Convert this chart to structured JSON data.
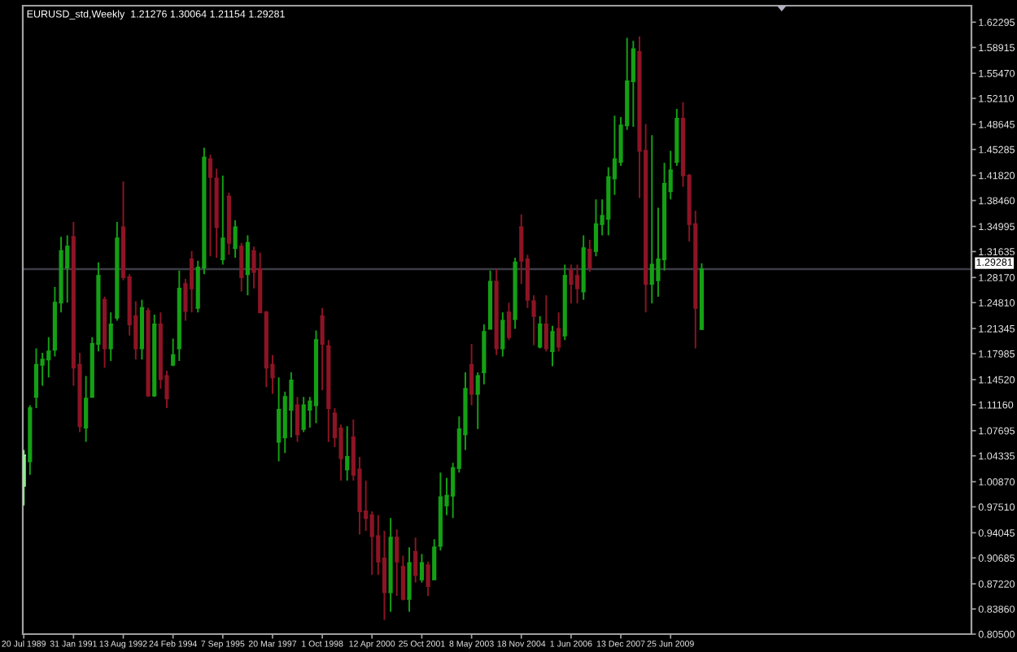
{
  "chart_data": {
    "type": "candlestick",
    "title": "EURUSD_std,Weekly  1.21276 1.30064 1.21154 1.29281",
    "x": [
      "1989-07-20",
      "1989-09-28",
      "1989-12-07",
      "1990-02-15",
      "1990-04-26",
      "1990-07-05",
      "1990-09-13",
      "1990-11-22",
      "1991-01-31",
      "1991-04-11",
      "1991-06-20",
      "1991-08-29",
      "1991-11-07",
      "1992-01-16",
      "1992-03-26",
      "1992-06-04",
      "1992-08-13",
      "1992-10-22",
      "1992-12-31",
      "1993-03-11",
      "1993-05-20",
      "1993-07-29",
      "1993-10-07",
      "1993-12-16",
      "1994-02-24",
      "1994-05-05",
      "1994-07-14",
      "1994-09-22",
      "1994-12-01",
      "1995-02-09",
      "1995-04-20",
      "1995-06-29",
      "1995-09-07",
      "1995-11-16",
      "1996-01-25",
      "1996-04-04",
      "1996-06-13",
      "1996-08-22",
      "1996-10-31",
      "1997-01-09",
      "1997-03-20",
      "1997-05-29",
      "1997-08-07",
      "1997-10-16",
      "1997-12-25",
      "1998-03-05",
      "1998-05-14",
      "1998-07-23",
      "1998-10-01",
      "1998-12-10",
      "1999-02-18",
      "1999-04-29",
      "1999-07-08",
      "1999-09-16",
      "1999-11-25",
      "2000-02-03",
      "2000-04-12",
      "2000-06-21",
      "2000-08-30",
      "2000-11-08",
      "2001-01-17",
      "2001-03-28",
      "2001-06-06",
      "2001-08-15",
      "2001-10-25",
      "2002-01-03",
      "2002-03-14",
      "2002-05-23",
      "2002-08-01",
      "2002-10-10",
      "2002-12-19",
      "2003-02-27",
      "2003-05-08",
      "2003-07-17",
      "2003-09-25",
      "2003-12-04",
      "2004-02-12",
      "2004-04-22",
      "2004-07-01",
      "2004-09-09",
      "2004-11-18",
      "2005-01-27",
      "2005-04-07",
      "2005-06-16",
      "2005-08-25",
      "2005-11-03",
      "2006-01-12",
      "2006-03-23",
      "2006-06-01",
      "2006-08-10",
      "2006-10-19",
      "2006-12-28",
      "2007-03-08",
      "2007-05-17",
      "2007-07-26",
      "2007-10-04",
      "2007-12-13",
      "2008-02-21",
      "2008-05-01",
      "2008-07-10",
      "2008-09-18",
      "2008-11-27",
      "2009-02-05",
      "2009-04-16",
      "2009-06-25",
      "2009-09-03",
      "2009-11-12",
      "2010-01-21",
      "2010-04-01",
      "2010-06-10"
    ],
    "ohlc": [
      [
        1.003,
        1.051,
        0.977,
        1.044
      ],
      [
        1.036,
        1.111,
        1.018,
        1.107
      ],
      [
        1.122,
        1.187,
        1.107,
        1.165
      ],
      [
        1.165,
        1.181,
        1.137,
        1.172
      ],
      [
        1.172,
        1.202,
        1.148,
        1.183
      ],
      [
        1.185,
        1.269,
        1.176,
        1.248
      ],
      [
        1.248,
        1.336,
        1.235,
        1.317
      ],
      [
        1.295,
        1.338,
        1.248,
        1.323
      ],
      [
        1.336,
        1.356,
        1.137,
        1.161
      ],
      [
        1.165,
        1.181,
        1.075,
        1.083
      ],
      [
        1.081,
        1.15,
        1.062,
        1.12
      ],
      [
        1.122,
        1.202,
        1.122,
        1.193
      ],
      [
        1.193,
        1.302,
        1.183,
        1.284
      ],
      [
        1.252,
        1.256,
        1.161,
        1.187
      ],
      [
        1.187,
        1.235,
        1.17,
        1.219
      ],
      [
        1.228,
        1.356,
        1.224,
        1.334
      ],
      [
        1.349,
        1.41,
        1.278,
        1.282
      ],
      [
        1.282,
        1.286,
        1.204,
        1.219
      ],
      [
        1.23,
        1.25,
        1.172,
        1.187
      ],
      [
        1.187,
        1.252,
        1.172,
        1.241
      ],
      [
        1.237,
        1.241,
        1.122,
        1.124
      ],
      [
        1.124,
        1.232,
        1.122,
        1.219
      ],
      [
        1.219,
        1.235,
        1.133,
        1.146
      ],
      [
        1.15,
        1.157,
        1.107,
        1.12
      ],
      [
        1.165,
        1.2,
        1.163,
        1.178
      ],
      [
        1.187,
        1.291,
        1.17,
        1.267
      ],
      [
        1.273,
        1.28,
        1.224,
        1.237
      ],
      [
        1.306,
        1.317,
        1.235,
        1.267
      ],
      [
        1.241,
        1.304,
        1.235,
        1.295
      ],
      [
        1.295,
        1.455,
        1.286,
        1.442
      ],
      [
        1.44,
        1.446,
        1.31,
        1.416
      ],
      [
        1.414,
        1.427,
        1.308,
        1.349
      ],
      [
        1.306,
        1.418,
        1.299,
        1.334
      ],
      [
        1.39,
        1.395,
        1.312,
        1.328
      ],
      [
        1.321,
        1.358,
        1.308,
        1.349
      ],
      [
        1.323,
        1.328,
        1.263,
        1.282
      ],
      [
        1.286,
        1.338,
        1.258,
        1.328
      ],
      [
        1.317,
        1.323,
        1.267,
        1.289
      ],
      [
        1.293,
        1.315,
        1.235,
        1.235
      ],
      [
        1.235,
        1.237,
        1.135,
        1.161
      ],
      [
        1.165,
        1.178,
        1.126,
        1.148
      ],
      [
        1.062,
        1.148,
        1.036,
        1.105
      ],
      [
        1.068,
        1.129,
        1.047,
        1.122
      ],
      [
        1.105,
        1.155,
        1.068,
        1.144
      ],
      [
        1.111,
        1.122,
        1.062,
        1.072
      ],
      [
        1.079,
        1.122,
        1.075,
        1.111
      ],
      [
        1.105,
        1.122,
        1.081,
        1.116
      ],
      [
        1.111,
        1.211,
        1.087,
        1.198
      ],
      [
        1.23,
        1.241,
        1.131,
        1.193
      ],
      [
        1.19,
        1.198,
        1.062,
        1.107
      ],
      [
        1.1,
        1.107,
        1.055,
        1.068
      ],
      [
        1.08,
        1.085,
        1.01,
        1.04
      ],
      [
        1.025,
        1.083,
        1.01,
        1.042
      ],
      [
        1.068,
        1.092,
        1.01,
        1.018
      ],
      [
        1.025,
        1.042,
        0.938,
        0.969
      ],
      [
        0.969,
        1.01,
        0.943,
        0.96
      ],
      [
        0.964,
        0.969,
        0.884,
        0.936
      ],
      [
        0.936,
        0.964,
        0.884,
        0.902
      ],
      [
        0.906,
        0.943,
        0.824,
        0.861
      ],
      [
        0.861,
        0.96,
        0.835,
        0.934
      ],
      [
        0.934,
        0.945,
        0.856,
        0.902
      ],
      [
        0.895,
        0.91,
        0.85,
        0.852
      ],
      [
        0.852,
        0.921,
        0.835,
        0.9
      ],
      [
        0.915,
        0.934,
        0.874,
        0.884
      ],
      [
        0.878,
        0.912,
        0.874,
        0.9
      ],
      [
        0.897,
        0.902,
        0.856,
        0.869
      ],
      [
        0.878,
        0.932,
        0.878,
        0.921
      ],
      [
        0.923,
        1.021,
        0.917,
        0.988
      ],
      [
        0.977,
        1.014,
        0.964,
        0.99
      ],
      [
        0.99,
        1.034,
        0.96,
        1.027
      ],
      [
        1.027,
        1.096,
        1.021,
        1.079
      ],
      [
        1.072,
        1.155,
        1.051,
        1.133
      ],
      [
        1.165,
        1.193,
        1.111,
        1.126
      ],
      [
        1.126,
        1.155,
        1.079,
        1.15
      ],
      [
        1.155,
        1.219,
        1.139,
        1.209
      ],
      [
        1.213,
        1.291,
        1.213,
        1.276
      ],
      [
        1.276,
        1.293,
        1.178,
        1.187
      ],
      [
        1.187,
        1.235,
        1.176,
        1.224
      ],
      [
        1.235,
        1.248,
        1.198,
        1.202
      ],
      [
        1.226,
        1.308,
        1.213,
        1.302
      ],
      [
        1.349,
        1.366,
        1.273,
        1.304
      ],
      [
        1.306,
        1.312,
        1.241,
        1.252
      ],
      [
        1.25,
        1.258,
        1.191,
        1.23
      ],
      [
        1.189,
        1.23,
        1.187,
        1.219
      ],
      [
        1.219,
        1.258,
        1.183,
        1.187
      ],
      [
        1.183,
        1.217,
        1.163,
        1.209
      ],
      [
        1.213,
        1.235,
        1.183,
        1.189
      ],
      [
        1.204,
        1.299,
        1.198,
        1.284
      ],
      [
        1.291,
        1.299,
        1.247,
        1.273
      ],
      [
        1.284,
        1.299,
        1.247,
        1.267
      ],
      [
        1.263,
        1.338,
        1.252,
        1.321
      ],
      [
        1.319,
        1.332,
        1.289,
        1.295
      ],
      [
        1.317,
        1.386,
        1.31,
        1.353
      ],
      [
        1.353,
        1.386,
        1.338,
        1.364
      ],
      [
        1.36,
        1.429,
        1.338,
        1.416
      ],
      [
        1.414,
        1.498,
        1.392,
        1.44
      ],
      [
        1.436,
        1.496,
        1.431,
        1.485
      ],
      [
        1.485,
        1.602,
        1.479,
        1.544
      ],
      [
        1.544,
        1.598,
        1.483,
        1.587
      ],
      [
        1.583,
        1.604,
        1.388,
        1.451
      ],
      [
        1.451,
        1.487,
        1.235,
        1.273
      ],
      [
        1.273,
        1.472,
        1.247,
        1.299
      ],
      [
        1.278,
        1.375,
        1.256,
        1.306
      ],
      [
        1.306,
        1.435,
        1.291,
        1.407
      ],
      [
        1.397,
        1.451,
        1.386,
        1.425
      ],
      [
        1.436,
        1.507,
        1.431,
        1.494
      ],
      [
        1.494,
        1.516,
        1.403,
        1.418
      ],
      [
        1.418,
        1.42,
        1.33,
        1.353
      ],
      [
        1.353,
        1.371,
        1.187,
        1.241
      ],
      [
        1.21276,
        1.30064,
        1.21154,
        1.29281
      ]
    ],
    "colors": [
      "#90ee90",
      "#14a014",
      "#14a014",
      "#14a014",
      "#14a014",
      "#14a014",
      "#14a014",
      "#14a014",
      "#8c1424",
      "#8c1424",
      "#14a014",
      "#14a014",
      "#14a014",
      "#8c1424",
      "#14a014",
      "#14a014",
      "#8c1424",
      "#8c1424",
      "#8c1424",
      "#14a014",
      "#8c1424",
      "#14a014",
      "#8c1424",
      "#8c1424",
      "#14a014",
      "#14a014",
      "#8c1424",
      "#8c1424",
      "#14a014",
      "#14a014",
      "#8c1424",
      "#8c1424",
      "#14a014",
      "#8c1424",
      "#14a014",
      "#8c1424",
      "#14a014",
      "#8c1424",
      "#8c1424",
      "#8c1424",
      "#8c1424",
      "#14a014",
      "#14a014",
      "#14a014",
      "#8c1424",
      "#14a014",
      "#14a014",
      "#14a014",
      "#8c1424",
      "#8c1424",
      "#8c1424",
      "#8c1424",
      "#14a014",
      "#8c1424",
      "#8c1424",
      "#8c1424",
      "#8c1424",
      "#8c1424",
      "#8c1424",
      "#14a014",
      "#8c1424",
      "#8c1424",
      "#14a014",
      "#8c1424",
      "#14a014",
      "#8c1424",
      "#14a014",
      "#14a014",
      "#14a014",
      "#14a014",
      "#14a014",
      "#14a014",
      "#8c1424",
      "#14a014",
      "#14a014",
      "#14a014",
      "#8c1424",
      "#14a014",
      "#8c1424",
      "#14a014",
      "#8c1424",
      "#8c1424",
      "#8c1424",
      "#14a014",
      "#8c1424",
      "#14a014",
      "#8c1424",
      "#14a014",
      "#8c1424",
      "#8c1424",
      "#14a014",
      "#8c1424",
      "#14a014",
      "#14a014",
      "#14a014",
      "#14a014",
      "#14a014",
      "#14a014",
      "#14a014",
      "#8c1424",
      "#8c1424",
      "#14a014",
      "#14a014",
      "#14a014",
      "#14a014",
      "#14a014",
      "#8c1424",
      "#8c1424",
      "#8c1424",
      "#14a014"
    ],
    "xlim": [
      "1989-07-09",
      "2018-10-02"
    ],
    "xticks": [
      {
        "value": "1989-07-20",
        "label": "20 Jul 1989"
      },
      {
        "value": "1991-01-31",
        "label": "31 Jan 1991"
      },
      {
        "value": "1992-08-13",
        "label": "13 Aug 1992"
      },
      {
        "value": "1994-02-24",
        "label": "24 Feb 1994"
      },
      {
        "value": "1995-09-07",
        "label": "7 Sep 1995"
      },
      {
        "value": "1997-03-20",
        "label": "20 Mar 1997"
      },
      {
        "value": "1998-10-01",
        "label": "1 Oct 1998"
      },
      {
        "value": "2000-04-12",
        "label": "12 Apr 2000"
      },
      {
        "value": "2001-10-25",
        "label": "25 Oct 2001"
      },
      {
        "value": "2003-05-08",
        "label": "8 May 2003"
      },
      {
        "value": "2004-11-18",
        "label": "18 Nov 2004"
      },
      {
        "value": "2006-06-01",
        "label": "1 Jun 2006"
      },
      {
        "value": "2007-12-13",
        "label": "13 Dec 2007"
      },
      {
        "value": "2009-06-25",
        "label": "25 Jun 2009"
      }
    ],
    "ylim": [
      0.805,
      1.645
    ],
    "yticks": [
      1.62295,
      1.58915,
      {
        "value": 1.5547,
        "label": "1.55470"
      },
      {
        "value": 1.5211,
        "label": "1.52110"
      },
      1.48645,
      1.45285,
      {
        "value": 1.4182,
        "label": "1.41820"
      },
      {
        "value": 1.3846,
        "label": "1.38460"
      },
      1.34995,
      1.31635,
      {
        "value": 1.2817,
        "label": "1.28170"
      },
      {
        "value": 1.2481,
        "label": "1.24810"
      },
      1.21345,
      1.17985,
      {
        "value": 1.1452,
        "label": "1.14520"
      },
      {
        "value": 1.1116,
        "label": "1.11160"
      },
      1.07695,
      1.04335,
      {
        "value": 1.0087,
        "label": "1.00870"
      },
      {
        "value": 0.9751,
        "label": "0.97510"
      },
      0.94045,
      0.90685,
      {
        "value": 0.8722,
        "label": "0.87220"
      },
      {
        "value": 0.8386,
        "label": "0.83860"
      },
      {
        "value": 0.805,
        "label": "0.80500"
      }
    ],
    "ref_lines": [
      {
        "axis": "y",
        "value": 1.29281,
        "label": "1.29281",
        "color": "#3c3c46"
      }
    ]
  }
}
